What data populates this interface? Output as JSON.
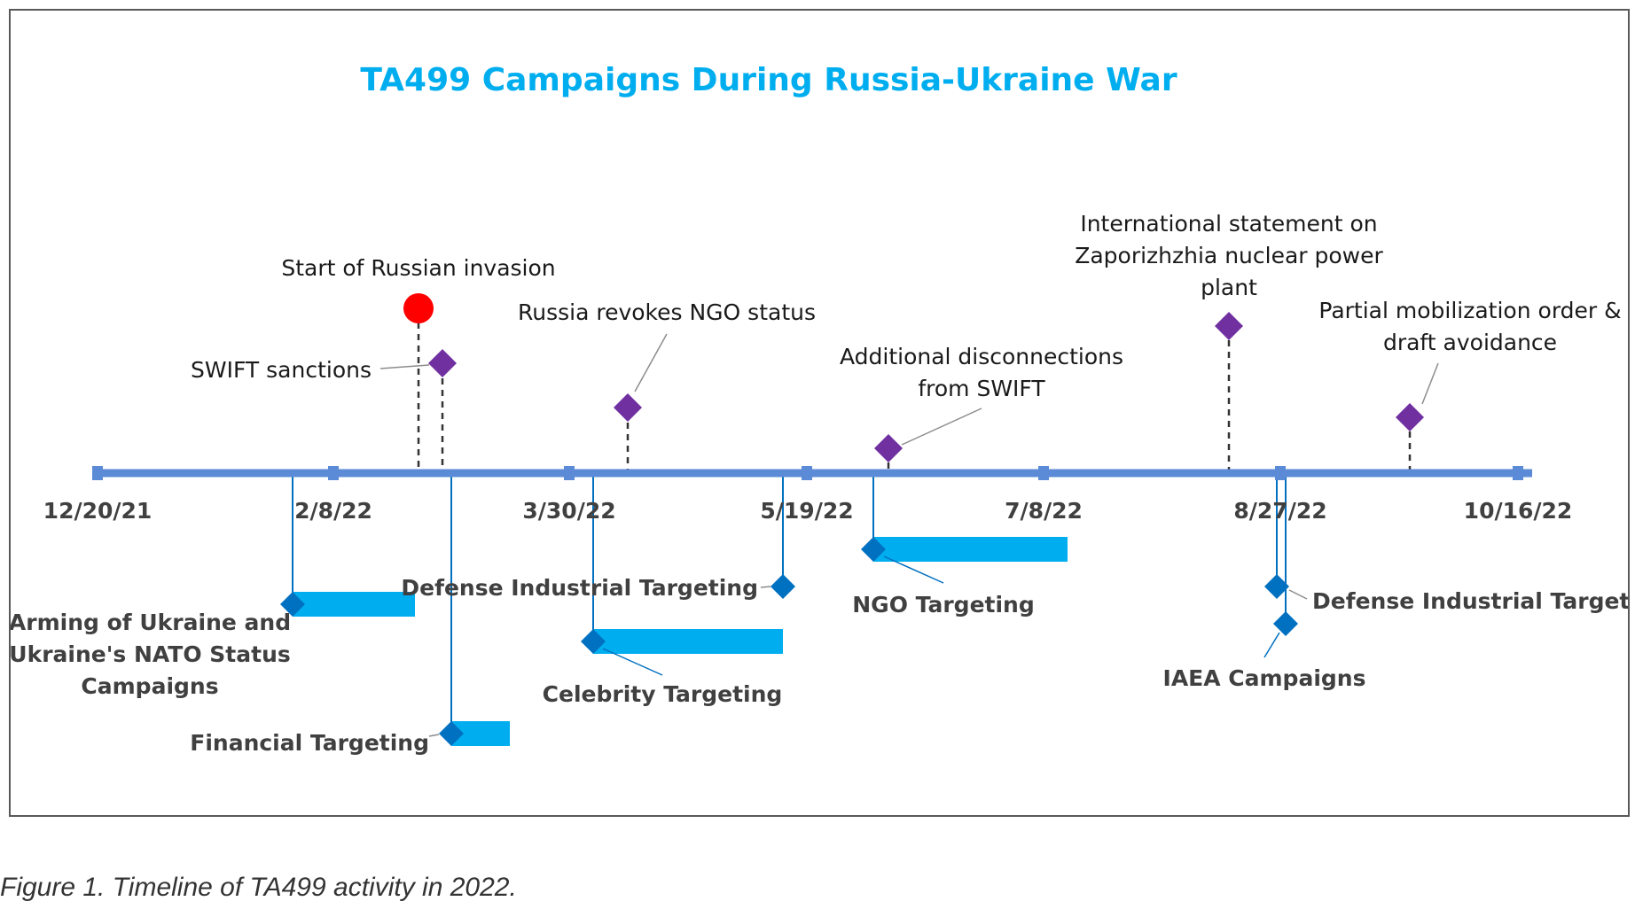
{
  "title": "TA499 Campaigns During Russia-Ukraine War",
  "caption": "Figure 1. Timeline of TA499 activity in 2022.",
  "colors": {
    "axis": "#5B8BD6",
    "bar": "#00AEEF",
    "campaign_marker": "#0070C0",
    "event_marker": "#7030A0",
    "invasion_marker": "#FF0000",
    "title": "#00AEEF"
  },
  "axis": {
    "ticks": [
      "12/20/21",
      "2/8/22",
      "3/30/22",
      "5/19/22",
      "7/8/22",
      "8/27/22",
      "10/16/22"
    ]
  },
  "events": [
    {
      "label_lines": [
        "Start of Russian invasion"
      ],
      "marker": "circle"
    },
    {
      "label_lines": [
        "SWIFT sanctions"
      ],
      "marker": "diamond"
    },
    {
      "label_lines": [
        "Russia revokes NGO status"
      ],
      "marker": "diamond"
    },
    {
      "label_lines": [
        "Additional disconnections",
        "from SWIFT"
      ],
      "marker": "diamond"
    },
    {
      "label_lines": [
        "International statement on",
        "Zaporizhzhia nuclear power",
        "plant"
      ],
      "marker": "diamond"
    },
    {
      "label_lines": [
        "Partial mobilization order &",
        "draft avoidance"
      ],
      "marker": "diamond"
    }
  ],
  "campaigns": [
    {
      "label_lines": [
        "Arming of Ukraine and",
        "Ukraine's NATO Status",
        "Campaigns"
      ]
    },
    {
      "label_lines": [
        "Financial Targeting"
      ]
    },
    {
      "label_lines": [
        "Defense Industrial Targeting"
      ]
    },
    {
      "label_lines": [
        "Celebrity Targeting"
      ]
    },
    {
      "label_lines": [
        "NGO Targeting"
      ]
    },
    {
      "label_lines": [
        "Defense Industrial Targeting"
      ]
    },
    {
      "label_lines": [
        "IAEA Campaigns"
      ]
    }
  ]
}
